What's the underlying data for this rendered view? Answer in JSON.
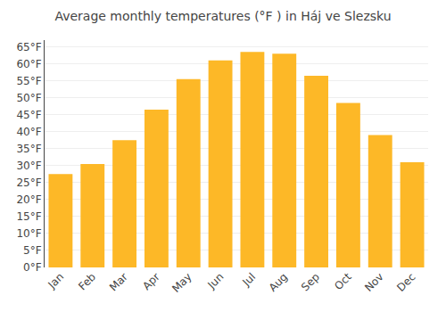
{
  "chart_data": {
    "type": "bar",
    "title": "Average monthly temperatures (°F ) in Háj ve Slezsku",
    "categories": [
      "Jan",
      "Feb",
      "Mar",
      "Apr",
      "May",
      "Jun",
      "Jul",
      "Aug",
      "Sep",
      "Oct",
      "Nov",
      "Dec"
    ],
    "values": [
      27.5,
      30.5,
      37.5,
      46.5,
      55.5,
      61.0,
      63.5,
      63.0,
      56.5,
      48.5,
      39.0,
      31.0
    ],
    "color": "#FDB827",
    "ylim": [
      0,
      67
    ],
    "yticks": [
      {
        "value": 0,
        "label": "0°F"
      },
      {
        "value": 5,
        "label": "5°F"
      },
      {
        "value": 10,
        "label": "10°F"
      },
      {
        "value": 15,
        "label": "15°F"
      },
      {
        "value": 20,
        "label": "20°F"
      },
      {
        "value": 25,
        "label": "25°F"
      },
      {
        "value": 30,
        "label": "30°F"
      },
      {
        "value": 35,
        "label": "35°F"
      },
      {
        "value": 40,
        "label": "40°F"
      },
      {
        "value": 45,
        "label": "45°F"
      },
      {
        "value": 50,
        "label": "50°F"
      },
      {
        "value": 55,
        "label": "55°F"
      },
      {
        "value": 60,
        "label": "60°F"
      },
      {
        "value": 65,
        "label": "65°F"
      }
    ],
    "grid": true
  }
}
